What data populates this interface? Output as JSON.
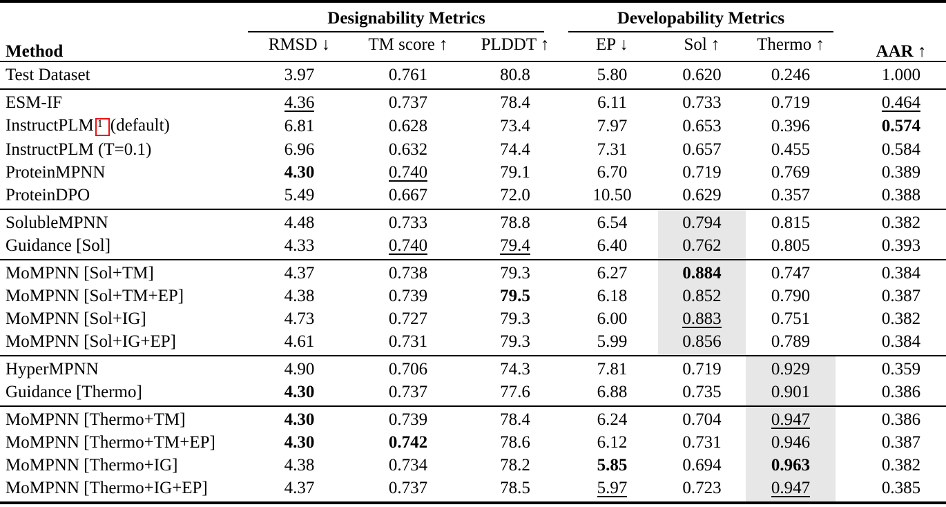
{
  "colors": {
    "background": "#ffffff",
    "text": "#000000",
    "highlight": "#e7e7e7",
    "citation_box": "#ee1111",
    "rule": "#000000"
  },
  "table": {
    "method_header": "Method",
    "aar_header": "AAR ↑",
    "groups": [
      {
        "label": "Designability Metrics",
        "sub_headers": [
          "RMSD ↓",
          "TM score ↑",
          "PLDDT ↑"
        ]
      },
      {
        "label": "Developability Metrics",
        "sub_headers": [
          "EP ↓",
          "Sol ↑",
          "Thermo ↑"
        ]
      }
    ],
    "column_keys": [
      "rmsd",
      "tm-score",
      "plddt",
      "ep",
      "sol",
      "thermo",
      "aar"
    ],
    "sections": [
      {
        "highlight_cols": [],
        "rows": [
          {
            "method": "Test Dataset",
            "values": [
              "3.97",
              "0.761",
              "80.8",
              "5.80",
              "0.620",
              "0.246",
              "1.000"
            ],
            "styles": [
              "",
              "",
              "",
              "",
              "",
              "",
              ""
            ]
          }
        ]
      },
      {
        "highlight_cols": [],
        "rows": [
          {
            "method": "ESM-IF",
            "values": [
              "4.36",
              "0.737",
              "78.4",
              "6.11",
              "0.733",
              "0.719",
              "0.464"
            ],
            "styles": [
              "u",
              "",
              "",
              "",
              "",
              "",
              "u"
            ]
          },
          {
            "method": "InstructPLM",
            "cite": "1",
            "suffix": "(default)",
            "values": [
              "6.81",
              "0.628",
              "73.4",
              "7.97",
              "0.653",
              "0.396",
              "0.574"
            ],
            "styles": [
              "",
              "",
              "",
              "",
              "",
              "",
              "b"
            ]
          },
          {
            "method": "InstructPLM (T=0.1)",
            "values": [
              "6.96",
              "0.632",
              "74.4",
              "7.31",
              "0.657",
              "0.455",
              "0.584"
            ],
            "styles": [
              "",
              "",
              "",
              "",
              "",
              "",
              ""
            ]
          },
          {
            "method": "ProteinMPNN",
            "values": [
              "4.30",
              "0.740",
              "79.1",
              "6.70",
              "0.719",
              "0.769",
              "0.389"
            ],
            "styles": [
              "b",
              "u",
              "",
              "",
              "",
              "",
              ""
            ]
          },
          {
            "method": "ProteinDPO",
            "values": [
              "5.49",
              "0.667",
              "72.0",
              "10.50",
              "0.629",
              "0.357",
              "0.388"
            ],
            "styles": [
              "",
              "",
              "",
              "",
              "",
              "",
              ""
            ]
          }
        ]
      },
      {
        "highlight_cols": [
          4
        ],
        "rows": [
          {
            "method": "SolubleMPNN",
            "values": [
              "4.48",
              "0.733",
              "78.8",
              "6.54",
              "0.794",
              "0.815",
              "0.382"
            ],
            "styles": [
              "",
              "",
              "",
              "",
              "",
              "",
              ""
            ]
          },
          {
            "method": "Guidance [Sol]",
            "values": [
              "4.33",
              "0.740",
              "79.4",
              "6.40",
              "0.762",
              "0.805",
              "0.393"
            ],
            "styles": [
              "",
              "u",
              "u",
              "",
              "",
              "",
              ""
            ]
          }
        ]
      },
      {
        "highlight_cols": [
          4
        ],
        "rows": [
          {
            "method": "MoMPNN [Sol+TM]",
            "values": [
              "4.37",
              "0.738",
              "79.3",
              "6.27",
              "0.884",
              "0.747",
              "0.384"
            ],
            "styles": [
              "",
              "",
              "",
              "",
              "b",
              "",
              ""
            ]
          },
          {
            "method": "MoMPNN [Sol+TM+EP]",
            "values": [
              "4.38",
              "0.739",
              "79.5",
              "6.18",
              "0.852",
              "0.790",
              "0.387"
            ],
            "styles": [
              "",
              "",
              "b",
              "",
              "",
              "",
              ""
            ]
          },
          {
            "method": "MoMPNN [Sol+IG]",
            "values": [
              "4.73",
              "0.727",
              "79.3",
              "6.00",
              "0.883",
              "0.751",
              "0.382"
            ],
            "styles": [
              "",
              "",
              "",
              "",
              "u",
              "",
              ""
            ]
          },
          {
            "method": "MoMPNN [Sol+IG+EP]",
            "values": [
              "4.61",
              "0.731",
              "79.3",
              "5.99",
              "0.856",
              "0.789",
              "0.384"
            ],
            "styles": [
              "",
              "",
              "",
              "",
              "",
              "",
              ""
            ]
          }
        ]
      },
      {
        "highlight_cols": [
          5
        ],
        "rows": [
          {
            "method": "HyperMPNN",
            "values": [
              "4.90",
              "0.706",
              "74.3",
              "7.81",
              "0.719",
              "0.929",
              "0.359"
            ],
            "styles": [
              "",
              "",
              "",
              "",
              "",
              "",
              ""
            ]
          },
          {
            "method": "Guidance [Thermo]",
            "values": [
              "4.30",
              "0.737",
              "77.6",
              "6.88",
              "0.735",
              "0.901",
              "0.386"
            ],
            "styles": [
              "b",
              "",
              "",
              "",
              "",
              "",
              ""
            ]
          }
        ]
      },
      {
        "highlight_cols": [
          5
        ],
        "rows": [
          {
            "method": "MoMPNN [Thermo+TM]",
            "values": [
              "4.30",
              "0.739",
              "78.4",
              "6.24",
              "0.704",
              "0.947",
              "0.386"
            ],
            "styles": [
              "b",
              "",
              "",
              "",
              "",
              "u",
              ""
            ]
          },
          {
            "method": "MoMPNN [Thermo+TM+EP]",
            "values": [
              "4.30",
              "0.742",
              "78.6",
              "6.12",
              "0.731",
              "0.946",
              "0.387"
            ],
            "styles": [
              "b",
              "b",
              "",
              "",
              "",
              "",
              ""
            ]
          },
          {
            "method": "MoMPNN [Thermo+IG]",
            "values": [
              "4.38",
              "0.734",
              "78.2",
              "5.85",
              "0.694",
              "0.963",
              "0.382"
            ],
            "styles": [
              "",
              "",
              "",
              "b",
              "",
              "b",
              ""
            ]
          },
          {
            "method": "MoMPNN [Thermo+IG+EP]",
            "values": [
              "4.37",
              "0.737",
              "78.5",
              "5.97",
              "0.723",
              "0.947",
              "0.385"
            ],
            "styles": [
              "",
              "",
              "",
              "u",
              "",
              "u",
              ""
            ]
          }
        ]
      }
    ]
  }
}
